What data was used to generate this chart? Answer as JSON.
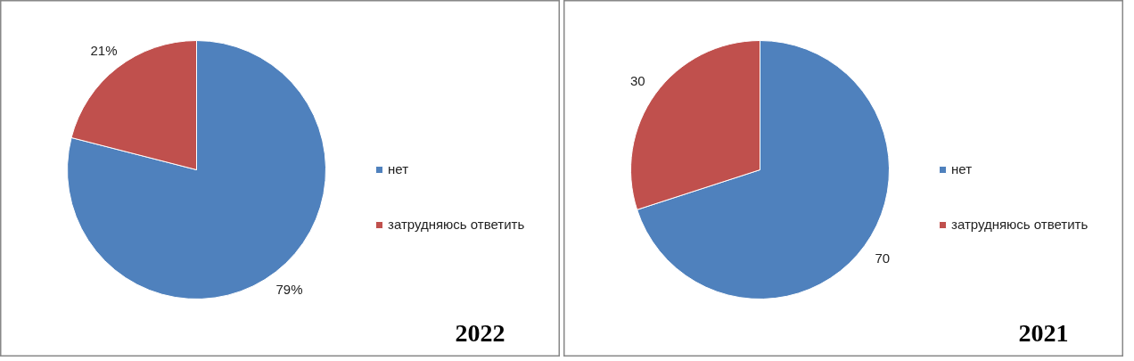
{
  "chart_data": [
    {
      "type": "pie",
      "categories": [
        "нет",
        "затрудняюсь ответить"
      ],
      "values": [
        79,
        21
      ],
      "colors": [
        "#4f81bd",
        "#c0504d"
      ],
      "value_labels": [
        "79%",
        "21%"
      ],
      "legend": "right",
      "annotations": [
        "2022"
      ]
    },
    {
      "type": "pie",
      "categories": [
        "нет",
        "затрудняюсь ответить"
      ],
      "values": [
        70,
        30
      ],
      "colors": [
        "#4f81bd",
        "#c0504d"
      ],
      "data_labels": true,
      "legend": "right",
      "annotations": [
        "2021"
      ]
    }
  ]
}
